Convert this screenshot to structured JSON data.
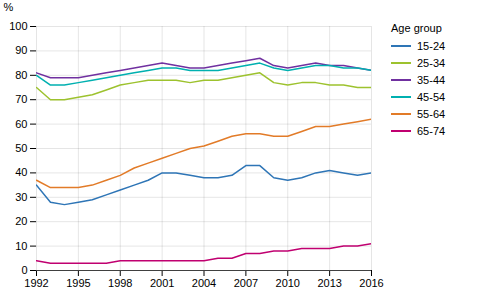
{
  "chart_data": {
    "type": "line",
    "ylabel": "%",
    "legend_title": "Age group",
    "x": [
      1992,
      1993,
      1994,
      1995,
      1996,
      1997,
      1998,
      1999,
      2000,
      2001,
      2002,
      2003,
      2004,
      2005,
      2006,
      2007,
      2008,
      2009,
      2010,
      2011,
      2012,
      2013,
      2014,
      2015,
      2016
    ],
    "series": [
      {
        "name": "15-24",
        "color": "#2E75B6",
        "values": [
          35,
          28,
          27,
          28,
          29,
          31,
          33,
          35,
          37,
          40,
          40,
          39,
          38,
          38,
          39,
          43,
          43,
          38,
          37,
          38,
          40,
          41,
          40,
          39,
          40
        ]
      },
      {
        "name": "25-34",
        "color": "#9DC22E",
        "values": [
          75,
          70,
          70,
          71,
          72,
          74,
          76,
          77,
          78,
          78,
          78,
          77,
          78,
          78,
          79,
          80,
          81,
          77,
          76,
          77,
          77,
          76,
          76,
          75,
          75
        ]
      },
      {
        "name": "35-44",
        "color": "#7030A0",
        "values": [
          81,
          79,
          79,
          79,
          80,
          81,
          82,
          83,
          84,
          85,
          84,
          83,
          83,
          84,
          85,
          86,
          87,
          84,
          83,
          84,
          85,
          84,
          84,
          83,
          82
        ]
      },
      {
        "name": "45-54",
        "color": "#00B0B0",
        "values": [
          80,
          76,
          76,
          77,
          78,
          79,
          80,
          81,
          82,
          83,
          83,
          82,
          82,
          82,
          83,
          84,
          85,
          83,
          82,
          83,
          84,
          84,
          83,
          83,
          82
        ]
      },
      {
        "name": "55-64",
        "color": "#E27B28",
        "values": [
          37,
          34,
          34,
          34,
          35,
          37,
          39,
          42,
          44,
          46,
          48,
          50,
          51,
          53,
          55,
          56,
          56,
          55,
          55,
          57,
          59,
          59,
          60,
          61,
          62
        ]
      },
      {
        "name": "65-74",
        "color": "#C00070",
        "values": [
          4,
          3,
          3,
          3,
          3,
          3,
          4,
          4,
          4,
          4,
          4,
          4,
          4,
          5,
          5,
          7,
          7,
          8,
          8,
          9,
          9,
          9,
          10,
          10,
          11
        ]
      }
    ],
    "xlim": [
      1992,
      2016
    ],
    "xticks": [
      1992,
      1995,
      1998,
      2001,
      2004,
      2007,
      2010,
      2013,
      2016
    ],
    "ylim": [
      0,
      100
    ],
    "yticks": [
      0,
      10,
      20,
      30,
      40,
      50,
      60,
      70,
      80,
      90,
      100
    ],
    "grid": true,
    "legend": "right"
  }
}
